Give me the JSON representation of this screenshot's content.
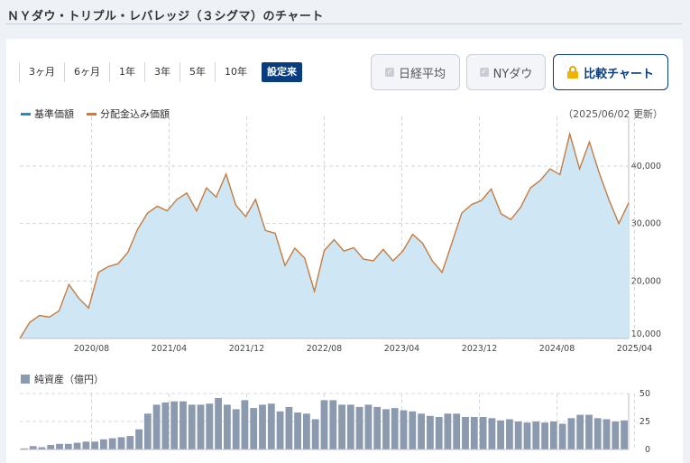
{
  "page": {
    "title": "ＮＹダウ・トリプル・レバレッジ（３シグマ）のチャート"
  },
  "toolbar": {
    "ranges": [
      "3ヶ月",
      "6ヶ月",
      "1年",
      "3年",
      "5年",
      "10年",
      "設定来"
    ],
    "active_range": "設定来",
    "compare_nikkei": "日経平均",
    "compare_nydow": "NYダウ",
    "compare_chart": "比較チャート"
  },
  "icons": {
    "compare_chart": "lock-icon",
    "checkbox": "check-icon"
  },
  "legend": {
    "base_price": "基準価額",
    "dividend_price": "分配金込み価額"
  },
  "updated": "（2025/06/02 更新）",
  "colors": {
    "base_price": "#1a8fcc",
    "dividend_price": "#d9772b",
    "area_fill": "#cfe6f4",
    "net_assets": "#8c9ab0",
    "accent": "#0a3c80"
  },
  "chart_data": [
    {
      "type": "area",
      "series": [
        {
          "name": "基準価額"
        },
        {
          "name": "分配金込み価額"
        }
      ],
      "x_ticks": [
        "2020/08",
        "2021/04",
        "2021/12",
        "2022/08",
        "2023/04",
        "2023/12",
        "2024/08",
        "2025/04"
      ],
      "y_ticks": [
        "10,000",
        "20,000",
        "30,000",
        "40,000"
      ],
      "ylim": [
        10000,
        48000
      ],
      "grid": true,
      "values": [
        10000,
        12800,
        14000,
        13700,
        14800,
        19400,
        17000,
        15300,
        21500,
        22500,
        23000,
        25000,
        29000,
        31800,
        33000,
        32200,
        34200,
        35300,
        32200,
        36200,
        34600,
        38600,
        33200,
        31200,
        34200,
        28800,
        28300,
        22700,
        25700,
        24000,
        18200,
        25300,
        27200,
        25200,
        25800,
        23800,
        23500,
        25500,
        23500,
        25200,
        28100,
        26600,
        23500,
        21500,
        26600,
        31800,
        33300,
        34000,
        36000,
        31700,
        30700,
        32800,
        36200,
        37500,
        39500,
        38500,
        45600,
        39500,
        44200,
        38800,
        34100,
        30000,
        33600
      ]
    },
    {
      "type": "bar",
      "name": "純資産（億円）",
      "y_ticks": [
        "0",
        "25",
        "50"
      ],
      "ylim": [
        0,
        50
      ],
      "values": [
        1,
        3,
        2,
        4,
        5,
        5,
        6,
        7,
        7,
        9,
        10,
        11,
        12,
        18,
        32,
        40,
        42,
        43,
        43,
        40,
        40,
        41,
        46,
        40,
        36,
        44,
        37,
        40,
        41,
        34,
        38,
        33,
        32,
        27,
        44,
        44,
        40,
        40,
        38,
        40,
        38,
        36,
        37,
        35,
        34,
        32,
        30,
        29,
        32,
        32,
        29,
        29,
        29,
        28,
        26,
        27,
        25,
        24,
        25,
        24,
        25,
        23,
        28,
        31,
        31,
        28,
        27,
        25,
        26
      ]
    }
  ]
}
